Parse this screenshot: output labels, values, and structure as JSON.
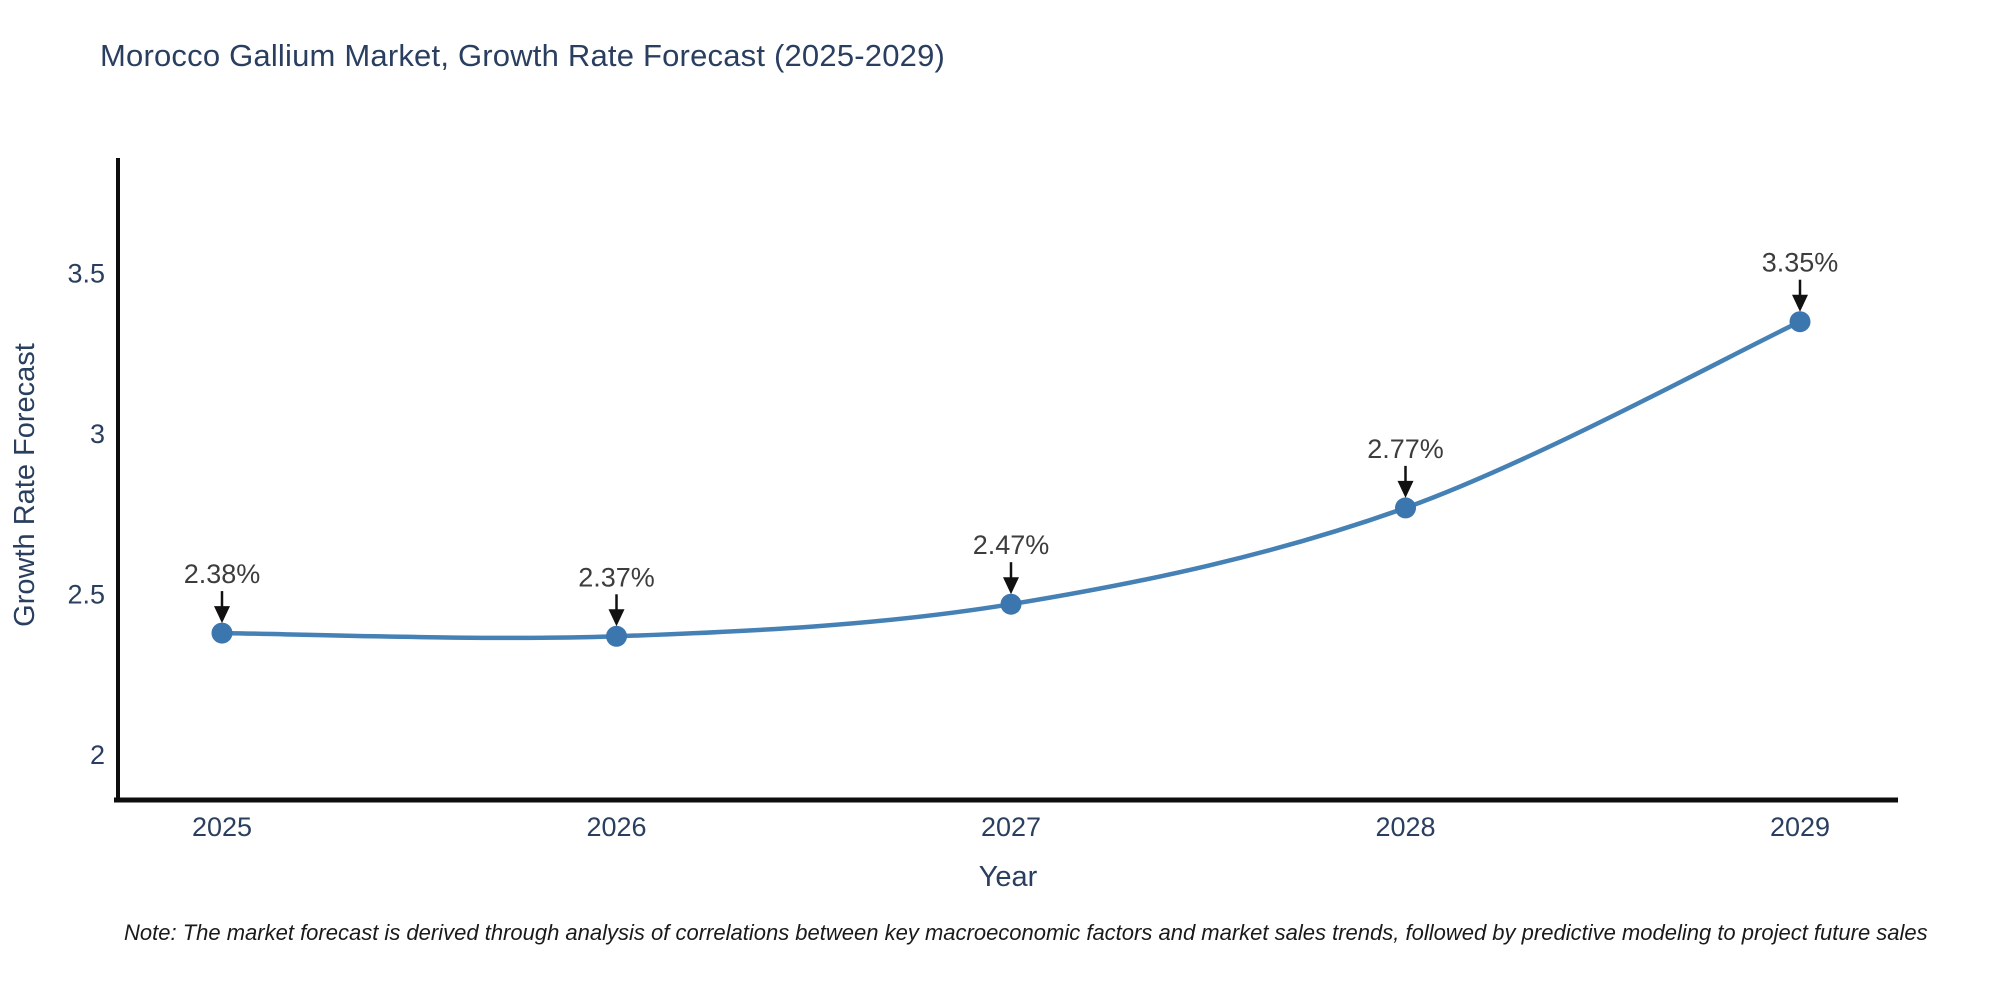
{
  "note": "Note: The market forecast is derived through analysis of correlations between key macroeconomic factors and market sales trends, followed by predictive modeling to project future sales",
  "chart_data": {
    "type": "line",
    "title": "Morocco Gallium Market, Growth Rate Forecast (2025-2029)",
    "categories": [
      "2025",
      "2026",
      "2027",
      "2028",
      "2029"
    ],
    "values": [
      2.38,
      2.37,
      2.47,
      2.77,
      3.35
    ],
    "point_labels": [
      "2.38%",
      "2.37%",
      "2.47%",
      "2.77%",
      "3.35%"
    ],
    "xlabel": "Year",
    "ylabel": "Growth Rate Forecast",
    "yticks": [
      2,
      2.5,
      3,
      3.5
    ],
    "ylim": [
      1.86,
      3.86
    ],
    "grid": false,
    "legend_position": "none",
    "smooth_spline": true,
    "colors": {
      "line": "#4581b5",
      "marker": "#3c76ae",
      "axis_line": "#0d0d0d",
      "arrow": "#111111",
      "title_text": "#2a3f5f",
      "axis_text": "#2a3f5f",
      "annotation_text": "#3d3d3d",
      "note_text": "#1a1a1a",
      "background": "#ffffff"
    }
  }
}
